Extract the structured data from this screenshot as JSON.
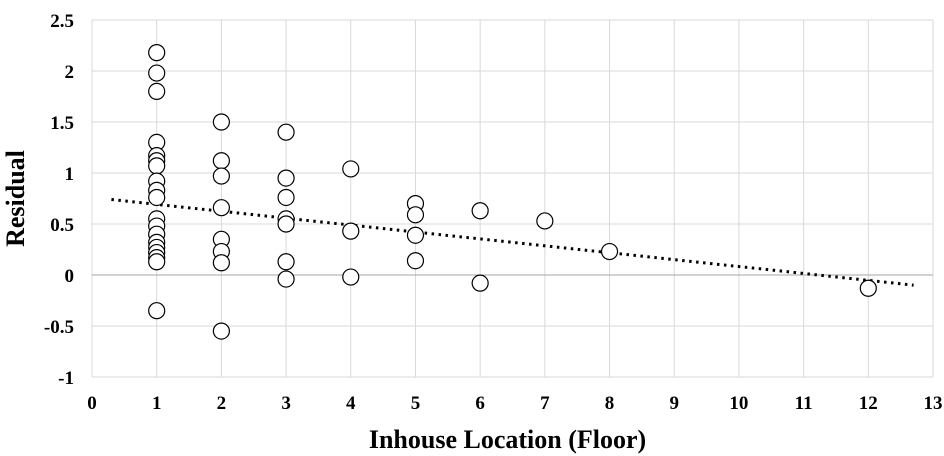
{
  "chart_data": {
    "type": "scatter",
    "xlabel": "Inhouse Location (Floor)",
    "ylabel": "Residual",
    "xlim": [
      0,
      13
    ],
    "ylim": [
      -1,
      2.5
    ],
    "x_ticks": [
      "0",
      "1",
      "2",
      "3",
      "4",
      "5",
      "6",
      "7",
      "8",
      "9",
      "10",
      "11",
      "12",
      "13"
    ],
    "y_ticks": [
      "2.5",
      "2",
      "1.5",
      "1",
      "0.5",
      "0",
      "-0.5",
      "-1"
    ],
    "grid": true,
    "legend": "none",
    "series": [
      {
        "marker": "open-circle",
        "points": [
          {
            "x": 1,
            "y": 2.18
          },
          {
            "x": 1,
            "y": 1.98
          },
          {
            "x": 1,
            "y": 1.8
          },
          {
            "x": 1,
            "y": 1.3
          },
          {
            "x": 1,
            "y": 1.17
          },
          {
            "x": 1,
            "y": 1.12
          },
          {
            "x": 1,
            "y": 1.07
          },
          {
            "x": 1,
            "y": 0.92
          },
          {
            "x": 1,
            "y": 0.83
          },
          {
            "x": 1,
            "y": 0.76
          },
          {
            "x": 1,
            "y": 0.55
          },
          {
            "x": 1,
            "y": 0.48
          },
          {
            "x": 1,
            "y": 0.4
          },
          {
            "x": 1,
            "y": 0.32
          },
          {
            "x": 1,
            "y": 0.27
          },
          {
            "x": 1,
            "y": 0.22
          },
          {
            "x": 1,
            "y": 0.17
          },
          {
            "x": 1,
            "y": 0.13
          },
          {
            "x": 1,
            "y": -0.35
          },
          {
            "x": 2,
            "y": 1.5
          },
          {
            "x": 2,
            "y": 1.12
          },
          {
            "x": 2,
            "y": 0.97
          },
          {
            "x": 2,
            "y": 0.66
          },
          {
            "x": 2,
            "y": 0.35
          },
          {
            "x": 2,
            "y": 0.23
          },
          {
            "x": 2,
            "y": 0.12
          },
          {
            "x": 2,
            "y": -0.55
          },
          {
            "x": 3,
            "y": 1.4
          },
          {
            "x": 3,
            "y": 0.95
          },
          {
            "x": 3,
            "y": 0.76
          },
          {
            "x": 3,
            "y": 0.55
          },
          {
            "x": 3,
            "y": 0.5
          },
          {
            "x": 3,
            "y": 0.13
          },
          {
            "x": 3,
            "y": -0.04
          },
          {
            "x": 4,
            "y": 1.04
          },
          {
            "x": 4,
            "y": 0.43
          },
          {
            "x": 4,
            "y": -0.02
          },
          {
            "x": 5,
            "y": 0.7
          },
          {
            "x": 5,
            "y": 0.59
          },
          {
            "x": 5,
            "y": 0.39
          },
          {
            "x": 5,
            "y": 0.14
          },
          {
            "x": 6,
            "y": 0.63
          },
          {
            "x": 6,
            "y": -0.08
          },
          {
            "x": 7,
            "y": 0.53
          },
          {
            "x": 8,
            "y": 0.23
          },
          {
            "x": 12,
            "y": -0.13
          }
        ]
      }
    ],
    "trendline": {
      "style": "dotted",
      "x": [
        0.3,
        12.7
      ],
      "y": [
        0.74,
        -0.1
      ]
    }
  }
}
